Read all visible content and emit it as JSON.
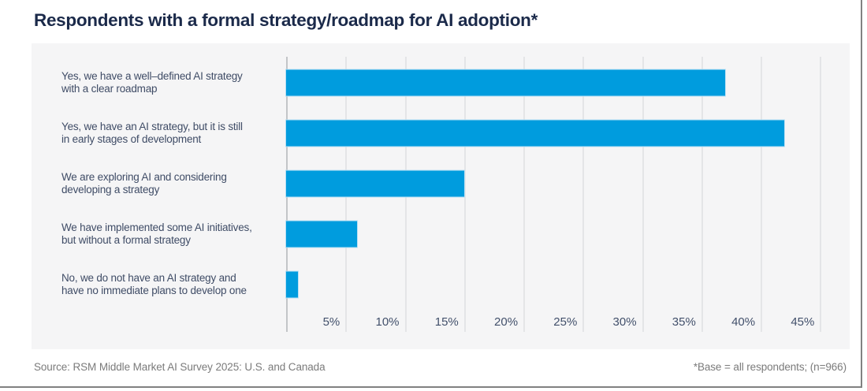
{
  "title": "Respondents with a formal strategy/roadmap for AI adoption*",
  "footer": {
    "source": "Source: RSM Middle Market AI Survey 2025: U.S. and Canada",
    "note": "*Base = all respondents; (n=966)"
  },
  "colors": {
    "bar": "#009cde",
    "panel_bg": "#f5f5f6",
    "gridline": "#e4e5e7",
    "axis_line": "#c3c5c8",
    "title_text": "#1b2a4a",
    "label_text": "#3f4c66",
    "tick_text": "#42506b",
    "footer_text": "#7b7b7b",
    "frame_border": "#818181"
  },
  "chart_data": {
    "type": "bar",
    "orientation": "horizontal",
    "title": "Respondents with a formal strategy/roadmap for AI adoption*",
    "categories": [
      "Yes, we have a well–defined AI strategy with a clear roadmap",
      "Yes, we have an AI strategy, but it is still in early stages of development",
      "We are exploring AI and considering developing a strategy",
      "We have implemented some AI initiatives, but without a formal strategy",
      "No, we do not have an AI strategy and have no immediate plans to develop one"
    ],
    "category_lines": [
      [
        "Yes, we have a well–defined AI strategy",
        "with a clear roadmap"
      ],
      [
        "Yes, we have an AI strategy, but it is still",
        "in early stages of development"
      ],
      [
        "We are exploring AI and considering",
        "developing a strategy"
      ],
      [
        "We have implemented some AI initiatives,",
        "but without a formal strategy"
      ],
      [
        "No, we do not have an AI strategy and",
        "have no immediate plans to develop one"
      ]
    ],
    "values": [
      37,
      42,
      15,
      6,
      1
    ],
    "unit": "%",
    "xlabel": "",
    "ylabel": "",
    "x_tick_labels": [
      "5%",
      "10%",
      "15%",
      "20%",
      "25%",
      "30%",
      "35%",
      "40%",
      "45%"
    ],
    "x_tick_values": [
      5,
      10,
      15,
      20,
      25,
      30,
      35,
      40,
      45
    ],
    "xlim": [
      0,
      47.5
    ],
    "grid": true,
    "legend": false
  }
}
